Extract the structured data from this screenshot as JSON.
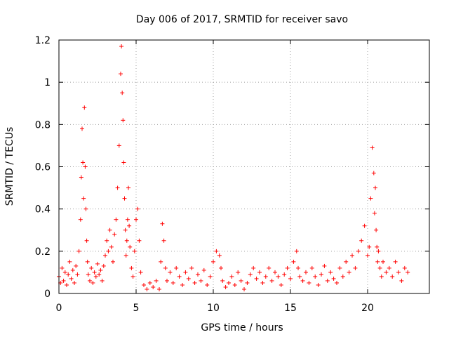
{
  "chart_data": {
    "type": "scatter",
    "title": "Day 006 of 2017, SRMTID for receiver savo",
    "xlabel": "GPS time / hours",
    "ylabel": "SRMTID / TECUs",
    "xlim": [
      0,
      24
    ],
    "ylim": [
      0,
      1.2
    ],
    "x_ticks": [
      0,
      5,
      10,
      15,
      20
    ],
    "x_tick_labels": [
      "0",
      "5",
      "10",
      "15",
      "20"
    ],
    "y_ticks": [
      0,
      0.2,
      0.4,
      0.6,
      0.8,
      1.0,
      1.2
    ],
    "y_tick_labels": [
      "0",
      "0.2",
      "0.4",
      "0.6",
      "0.8",
      "1",
      "1.2"
    ],
    "grid": true,
    "marker": "+",
    "color": "#ff0000",
    "series": [
      {
        "name": "SRMTID",
        "x": [
          0.0,
          0.1,
          0.2,
          0.3,
          0.4,
          0.5,
          0.6,
          0.7,
          0.8,
          0.9,
          1.0,
          1.1,
          1.2,
          1.3,
          1.4,
          1.45,
          1.5,
          1.55,
          1.6,
          1.65,
          1.7,
          1.75,
          1.8,
          1.85,
          1.9,
          2.0,
          2.1,
          2.2,
          2.3,
          2.4,
          2.5,
          2.6,
          2.7,
          2.8,
          2.9,
          3.0,
          3.1,
          3.2,
          3.3,
          3.4,
          3.5,
          3.6,
          3.7,
          3.8,
          3.9,
          4.0,
          4.05,
          4.1,
          4.15,
          4.2,
          4.25,
          4.3,
          4.35,
          4.4,
          4.45,
          4.5,
          4.55,
          4.6,
          4.7,
          4.8,
          4.9,
          5.0,
          5.1,
          5.2,
          5.3,
          5.5,
          5.7,
          5.9,
          6.1,
          6.3,
          6.5,
          6.6,
          6.7,
          6.8,
          6.9,
          7.0,
          7.2,
          7.4,
          7.6,
          7.8,
          8.0,
          8.2,
          8.4,
          8.6,
          8.8,
          9.0,
          9.2,
          9.4,
          9.6,
          9.8,
          10.0,
          10.2,
          10.4,
          10.5,
          10.6,
          10.8,
          11.0,
          11.2,
          11.4,
          11.6,
          11.8,
          12.0,
          12.2,
          12.4,
          12.6,
          12.8,
          13.0,
          13.2,
          13.4,
          13.6,
          13.8,
          14.0,
          14.2,
          14.4,
          14.6,
          14.8,
          15.0,
          15.2,
          15.4,
          15.5,
          15.6,
          15.8,
          16.0,
          16.2,
          16.4,
          16.6,
          16.8,
          17.0,
          17.2,
          17.4,
          17.6,
          17.8,
          18.0,
          18.2,
          18.4,
          18.6,
          18.8,
          19.0,
          19.2,
          19.4,
          19.6,
          19.8,
          20.0,
          20.1,
          20.2,
          20.3,
          20.4,
          20.45,
          20.5,
          20.55,
          20.6,
          20.65,
          20.7,
          20.8,
          20.9,
          21.0,
          21.2,
          21.4,
          21.6,
          21.8,
          22.0,
          22.2,
          22.4,
          22.6
        ],
        "y": [
          0.08,
          0.05,
          0.12,
          0.06,
          0.1,
          0.04,
          0.09,
          0.15,
          0.07,
          0.11,
          0.05,
          0.13,
          0.09,
          0.2,
          0.35,
          0.55,
          0.78,
          0.62,
          0.45,
          0.88,
          0.6,
          0.4,
          0.25,
          0.15,
          0.09,
          0.06,
          0.12,
          0.05,
          0.1,
          0.08,
          0.14,
          0.09,
          0.11,
          0.06,
          0.13,
          0.18,
          0.25,
          0.2,
          0.3,
          0.22,
          0.15,
          0.28,
          0.35,
          0.5,
          0.7,
          1.04,
          1.17,
          0.95,
          0.82,
          0.62,
          0.45,
          0.3,
          0.18,
          0.25,
          0.35,
          0.5,
          0.32,
          0.22,
          0.12,
          0.08,
          0.2,
          0.35,
          0.4,
          0.25,
          0.1,
          0.04,
          0.02,
          0.05,
          0.03,
          0.06,
          0.02,
          0.15,
          0.33,
          0.25,
          0.12,
          0.06,
          0.1,
          0.05,
          0.12,
          0.08,
          0.04,
          0.1,
          0.07,
          0.12,
          0.05,
          0.09,
          0.06,
          0.11,
          0.04,
          0.08,
          0.15,
          0.2,
          0.18,
          0.12,
          0.06,
          0.03,
          0.05,
          0.08,
          0.04,
          0.1,
          0.06,
          0.02,
          0.05,
          0.09,
          0.12,
          0.07,
          0.1,
          0.05,
          0.08,
          0.12,
          0.06,
          0.1,
          0.08,
          0.04,
          0.09,
          0.12,
          0.07,
          0.15,
          0.2,
          0.12,
          0.08,
          0.06,
          0.1,
          0.05,
          0.12,
          0.08,
          0.04,
          0.09,
          0.13,
          0.06,
          0.1,
          0.07,
          0.05,
          0.12,
          0.08,
          0.15,
          0.1,
          0.18,
          0.12,
          0.2,
          0.25,
          0.32,
          0.18,
          0.22,
          0.45,
          0.69,
          0.57,
          0.38,
          0.5,
          0.3,
          0.22,
          0.15,
          0.2,
          0.12,
          0.08,
          0.15,
          0.1,
          0.12,
          0.08,
          0.15,
          0.1,
          0.06,
          0.12,
          0.1
        ]
      }
    ]
  }
}
